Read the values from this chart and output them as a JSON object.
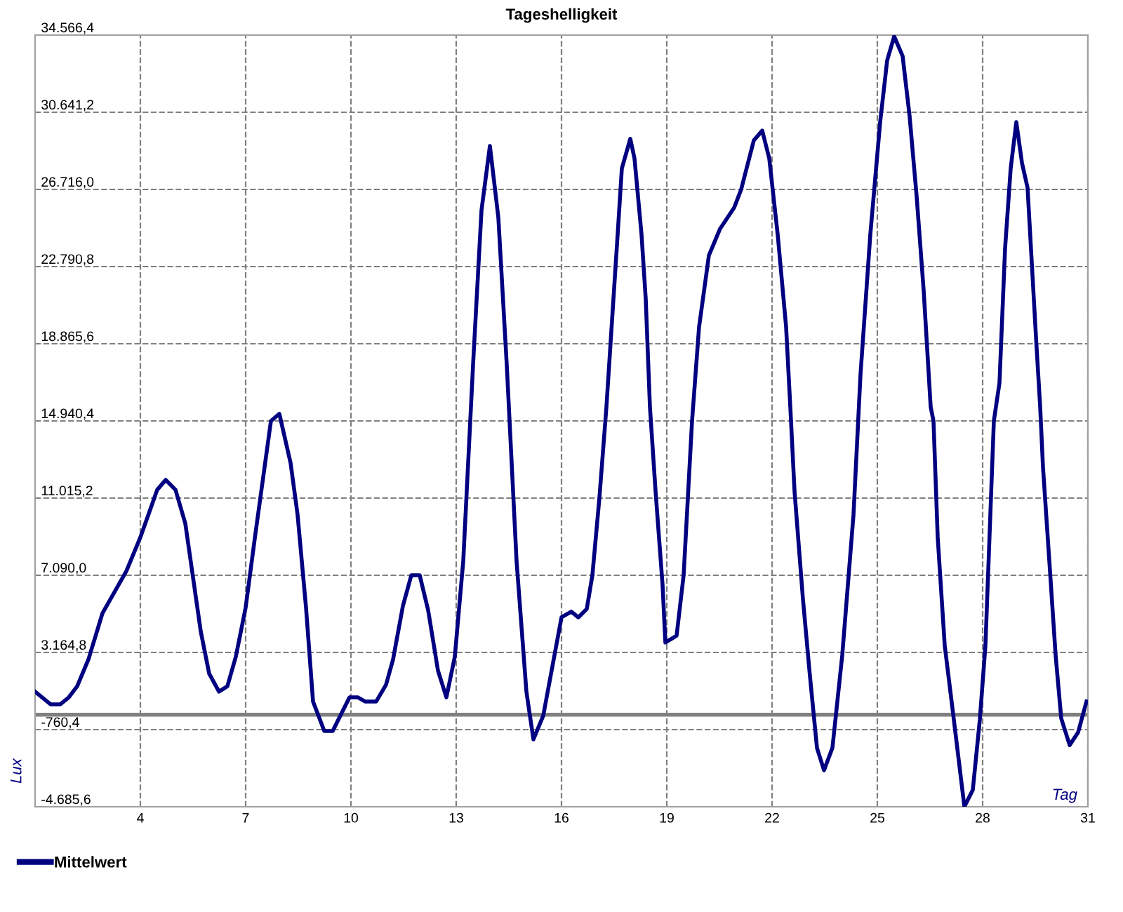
{
  "chart_data": {
    "type": "line",
    "title": "Tageshelligkeit",
    "xlabel": "Tag",
    "ylabel": "Lux",
    "x": [
      1.0,
      1.44,
      1.72,
      1.96,
      2.2,
      2.52,
      2.92,
      3.6,
      4.0,
      4.48,
      4.72,
      5.0,
      5.28,
      5.72,
      5.96,
      6.24,
      6.48,
      6.72,
      7.0,
      7.28,
      7.72,
      7.96,
      8.28,
      8.48,
      8.72,
      8.92,
      9.24,
      9.48,
      9.96,
      10.2,
      10.4,
      10.72,
      11.0,
      11.2,
      11.48,
      11.72,
      11.96,
      12.2,
      12.48,
      12.72,
      12.96,
      13.2,
      13.48,
      13.72,
      13.96,
      14.2,
      14.44,
      14.72,
      15.0,
      15.2,
      15.48,
      16.0,
      16.28,
      16.48,
      16.72,
      16.88,
      17.08,
      17.28,
      17.48,
      17.6,
      17.72,
      17.96,
      18.08,
      18.28,
      18.4,
      18.52,
      18.68,
      18.88,
      18.96,
      19.28,
      19.48,
      19.72,
      19.92,
      20.2,
      20.52,
      20.92,
      21.12,
      21.48,
      21.72,
      21.92,
      22.16,
      22.4,
      22.52,
      22.64,
      22.88,
      23.08,
      23.28,
      23.48,
      23.72,
      24.0,
      24.32,
      24.52,
      24.8,
      25.08,
      25.28,
      25.48,
      25.72,
      25.92,
      26.12,
      26.32,
      26.52,
      26.6,
      26.72,
      26.92,
      27.2,
      27.48,
      27.72,
      27.92,
      28.08,
      28.32,
      28.48,
      28.64,
      28.8,
      28.96,
      29.12,
      29.28,
      29.4,
      29.52,
      29.64,
      29.72,
      29.92,
      30.08,
      30.24,
      30.48,
      30.72,
      30.96
    ],
    "series": [
      {
        "name": "Mittelwert",
        "color": "#000080",
        "values": [
          1170,
          525,
          525,
          880,
          1450,
          2810,
          5160,
          7300,
          9020,
          11440,
          11940,
          11440,
          9730,
          4240,
          2090,
          1170,
          1450,
          2950,
          5450,
          9230,
          14940,
          15300,
          12800,
          10160,
          5450,
          670,
          -830,
          -830,
          880,
          880,
          670,
          670,
          1520,
          2810,
          5520,
          7090,
          7090,
          5310,
          2240,
          880,
          2950,
          7800,
          17800,
          25650,
          28930,
          25290,
          17800,
          7800,
          1170,
          -1260,
          -50,
          4950,
          5240,
          4950,
          5380,
          7090,
          11020,
          15650,
          21150,
          24430,
          27790,
          29290,
          28290,
          24430,
          21150,
          15650,
          11370,
          6590,
          3670,
          4020,
          7090,
          14940,
          19720,
          23360,
          24720,
          25790,
          26720,
          29210,
          29710,
          28290,
          24430,
          19720,
          15650,
          11370,
          5880,
          1950,
          -1690,
          -2830,
          -1690,
          3020,
          10160,
          17300,
          24430,
          30140,
          33280,
          34500,
          33500,
          30430,
          26360,
          21580,
          15650,
          14940,
          9020,
          3520,
          -550,
          -4680,
          -3830,
          -260,
          3520,
          14940,
          16870,
          23720,
          27790,
          30140,
          28080,
          26800,
          23010,
          19220,
          15650,
          12590,
          7300,
          3020,
          -190,
          -1550,
          -900,
          670
        ]
      }
    ],
    "xlim": [
      1,
      31
    ],
    "xticks": [
      4,
      7,
      10,
      13,
      16,
      19,
      22,
      25,
      28,
      31
    ],
    "ylim": [
      -4685.6,
      34566.4
    ],
    "yticks": [
      {
        "value": -4685.6,
        "label": "-4.685,6"
      },
      {
        "value": -760.4,
        "label": "-760,4"
      },
      {
        "value": 3164.8,
        "label": "3.164,8"
      },
      {
        "value": 7090.0,
        "label": "7.090,0"
      },
      {
        "value": 11015.2,
        "label": "11.015,2"
      },
      {
        "value": 14940.4,
        "label": "14.940,4"
      },
      {
        "value": 18865.6,
        "label": "18.865,6"
      },
      {
        "value": 22790.8,
        "label": "22.790,8"
      },
      {
        "value": 26716.0,
        "label": "26.716,0"
      },
      {
        "value": 30641.2,
        "label": "30.641,2"
      },
      {
        "value": 34566.4,
        "label": "34.566,4"
      }
    ],
    "ref_lines": [
      {
        "axis": "y",
        "value": 0,
        "color": "#808080",
        "line_style": "solid"
      }
    ],
    "grid": true,
    "legend": "bottom",
    "line_style": "solid",
    "marker": "none"
  }
}
